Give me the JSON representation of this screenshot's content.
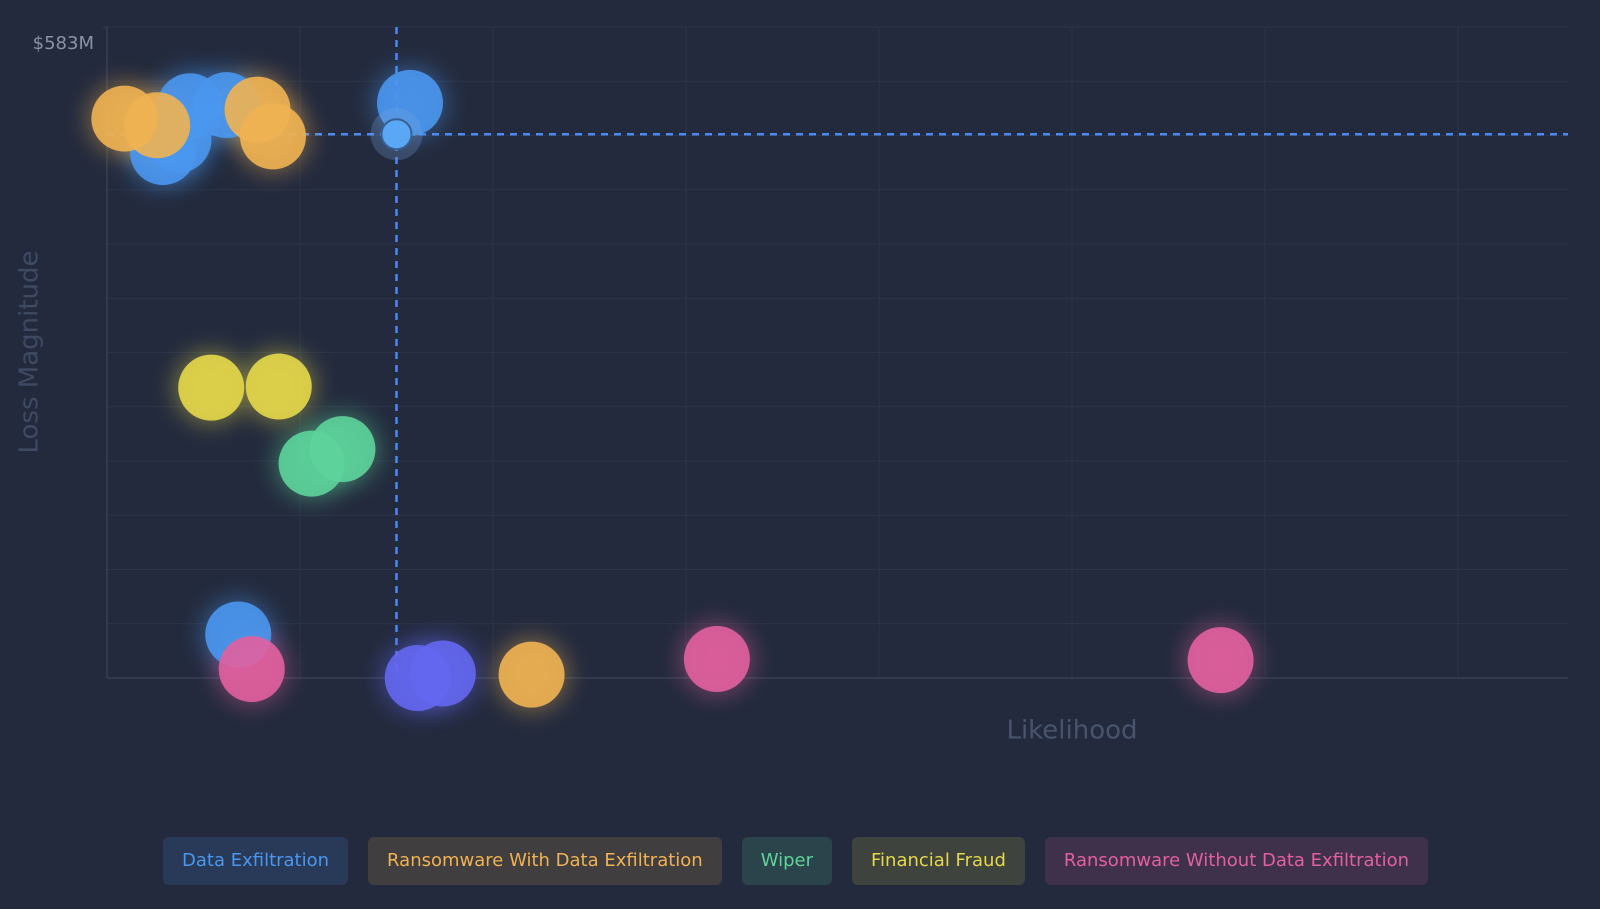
{
  "chart_data": {
    "type": "scatter",
    "x_label": "Likelihood",
    "y_label": "Loss Magnitude",
    "xlim": [
      0,
      75.7
    ],
    "ylim": [
      0,
      583
    ],
    "yticks": [
      {
        "value": 583,
        "label": "$583M"
      }
    ],
    "grid": true,
    "series": [
      {
        "name": "Data Exfiltration",
        "color": "#4a97ef",
        "x": [
          4.3,
          6.2,
          3.7,
          2.9,
          15.7,
          6.8
        ],
        "y": [
          512,
          513,
          482,
          471,
          515,
          39
        ]
      },
      {
        "name": "Ransomware With Data Exfiltration",
        "color": "#f0b252",
        "x": [
          0.9,
          2.6,
          7.8,
          8.6,
          22.0
        ],
        "y": [
          501,
          495,
          509,
          485,
          3
        ]
      },
      {
        "name": "Wiper",
        "color": "#5dd49b",
        "x": [
          10.6,
          12.2
        ],
        "y": [
          192,
          205
        ]
      },
      {
        "name": "Financial Fraud",
        "color": "#e5d84a",
        "x": [
          5.4,
          8.9
        ],
        "y": [
          260,
          261
        ]
      },
      {
        "name": "Ransomware Without Data Exfiltration",
        "color": "#e2609f",
        "x": [
          7.5,
          31.6,
          57.7
        ],
        "y": [
          8,
          17,
          16
        ]
      },
      {
        "color": "#6467f0",
        "x": [
          16.1,
          17.4
        ],
        "y": [
          0,
          4
        ]
      }
    ],
    "reference_point": {
      "x": 15.0,
      "y": 487,
      "color": "#5aa8f5"
    }
  }
}
